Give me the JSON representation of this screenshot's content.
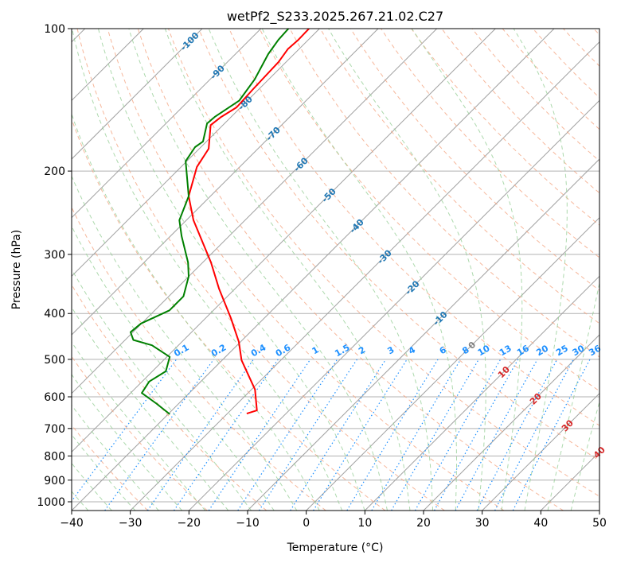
{
  "chart_data": {
    "type": "line",
    "subtype": "skew-t log-p",
    "title": "wetPf2_S233.2025.267.21.02.C27",
    "xlabel": "Temperature (°C)",
    "ylabel": "Pressure (hPa)",
    "xlim": [
      -40,
      50
    ],
    "ylim": [
      1050,
      100
    ],
    "xticks": [
      "−40",
      "−30",
      "−20",
      "−10",
      "0",
      "10",
      "20",
      "30",
      "40",
      "50"
    ],
    "xtick_values": [
      -40,
      -30,
      -20,
      -10,
      0,
      10,
      20,
      30,
      40,
      50
    ],
    "yticks": [
      "100",
      "200",
      "300",
      "400",
      "500",
      "600",
      "700",
      "800",
      "900",
      "1000"
    ],
    "ytick_values": [
      100,
      200,
      300,
      400,
      500,
      600,
      700,
      800,
      900,
      1000
    ],
    "grid": true,
    "isotherm_labels": [
      {
        "t": -100,
        "text": "-100",
        "color": "#1f77b4"
      },
      {
        "t": -90,
        "text": "-90",
        "color": "#1f77b4"
      },
      {
        "t": -80,
        "text": "-80",
        "color": "#1f77b4"
      },
      {
        "t": -70,
        "text": "-70",
        "color": "#1f77b4"
      },
      {
        "t": -60,
        "text": "-60",
        "color": "#1f77b4"
      },
      {
        "t": -50,
        "text": "-50",
        "color": "#1f77b4"
      },
      {
        "t": -40,
        "text": "-40",
        "color": "#1f77b4"
      },
      {
        "t": -30,
        "text": "-30",
        "color": "#1f77b4"
      },
      {
        "t": -20,
        "text": "-20",
        "color": "#1f77b4"
      },
      {
        "t": -10,
        "text": "-10",
        "color": "#1f77b4"
      },
      {
        "t": 0,
        "text": "0",
        "color": "#808080"
      },
      {
        "t": 10,
        "text": "10",
        "color": "#d62728"
      },
      {
        "t": 20,
        "text": "20",
        "color": "#d62728"
      },
      {
        "t": 30,
        "text": "30",
        "color": "#d62728"
      },
      {
        "t": 40,
        "text": "40",
        "color": "#d62728"
      }
    ],
    "mixing_ratio_labels": [
      "0.1",
      "0.2",
      "0.4",
      "0.6",
      "1",
      "1.5",
      "2",
      "3",
      "4",
      "6",
      "8",
      "10",
      "13",
      "16",
      "20",
      "25",
      "30",
      "36"
    ],
    "series": [
      {
        "name": "Temperature",
        "color": "#ff0000",
        "pressure": [
          100,
          105.6,
          110.5,
          117.6,
          134.2,
          146.7,
          153.7,
          159.9,
          179.4,
          196,
          226,
          254,
          312,
          354,
          409,
          459,
          502,
          579,
          641,
          651
        ],
        "temperature": [
          -81.8,
          -81.7,
          -81.9,
          -81.3,
          -81,
          -80.7,
          -81.7,
          -82.1,
          -78.4,
          -77.3,
          -73.7,
          -68.8,
          -58.6,
          -52.8,
          -45.7,
          -40.3,
          -36.7,
          -29.4,
          -25.5,
          -26.7
        ]
      },
      {
        "name": "Dewpoint",
        "color": "#008000",
        "pressure": [
          100,
          105.6,
          113.2,
          128,
          142,
          153.7,
          158.6,
          173.2,
          178,
          190.6,
          226,
          254,
          274.5,
          312,
          334,
          368,
          394,
          420,
          438,
          455,
          467,
          494,
          530,
          557,
          589,
          620,
          653
        ],
        "temperature": [
          -85.3,
          -85.1,
          -84.4,
          -82.4,
          -81.4,
          -82.8,
          -83,
          -80.6,
          -81,
          -80.2,
          -73.7,
          -71.2,
          -68.1,
          -62.5,
          -60,
          -57.5,
          -57.5,
          -60.1,
          -60.4,
          -58.6,
          -54.5,
          -49.5,
          -47.7,
          -48.8,
          -48.1,
          -43.8,
          -39.7
        ]
      }
    ]
  }
}
